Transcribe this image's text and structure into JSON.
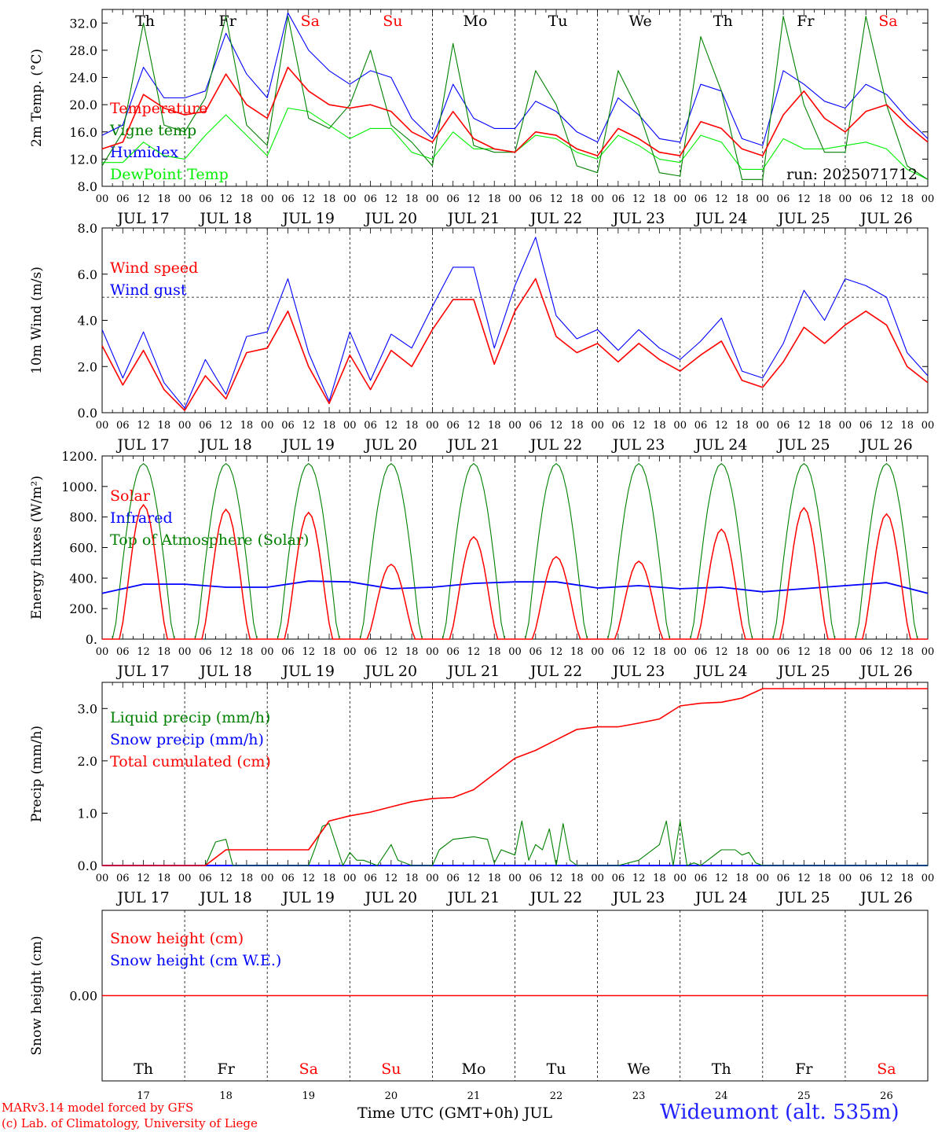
{
  "days": [
    "Th",
    "Fr",
    "Sa",
    "Su",
    "Mo",
    "Tu",
    "We",
    "Th",
    "Fr",
    "Sa"
  ],
  "day_colors": [
    "#000000",
    "#000000",
    "#ff0000",
    "#ff0000",
    "#000000",
    "#000000",
    "#000000",
    "#000000",
    "#000000",
    "#ff0000"
  ],
  "dates": [
    "JUL 17",
    "JUL 18",
    "JUL 19",
    "JUL 20",
    "JUL 21",
    "JUL 22",
    "JUL 23",
    "JUL 24",
    "JUL 25",
    "JUL 26"
  ],
  "day_numbers": [
    "17",
    "18",
    "19",
    "20",
    "21",
    "22",
    "23",
    "24",
    "25",
    "26"
  ],
  "hour_ticks": [
    "00",
    "06",
    "12",
    "18"
  ],
  "hour_end": "00",
  "footer": {
    "credit_line1": "MARv3.14 model forced by GFS",
    "credit_line2": "(c) Lab. of Climatology, University of Liege",
    "xlabel": "Time UTC (GMT+0h) JUL",
    "station": "Wideumont (alt. 535m)"
  },
  "colors": {
    "red": "#ff0000",
    "green": "#008000",
    "blue": "#0000ff",
    "lightgreen": "#00ee00",
    "grey": "#333333"
  },
  "chart_data": [
    {
      "type": "line",
      "ylabel": "2m Temp. (°C)",
      "ylim": [
        8,
        34
      ],
      "yticks": [
        "8.0",
        "12.0",
        "16.0",
        "20.0",
        "24.0",
        "28.0",
        "32.0"
      ],
      "annotation": "run: 2025071712",
      "legend": [
        "Temperature",
        "Vigne temp",
        "Humidex",
        "DewPoint Temp"
      ],
      "x": [
        0,
        6,
        12,
        18,
        24,
        30,
        36,
        42,
        48,
        54,
        60,
        66,
        72,
        78,
        84,
        90,
        96,
        102,
        108,
        114,
        120,
        126,
        132,
        138,
        144,
        150,
        156,
        162,
        168,
        174,
        180,
        186,
        192,
        198,
        204,
        210,
        216,
        222,
        228,
        234,
        240
      ],
      "series": [
        {
          "name": "Temperature",
          "color": "red",
          "values": [
            13.5,
            14.5,
            21.5,
            19.5,
            18.5,
            19.0,
            24.5,
            20.0,
            18.0,
            25.5,
            22.0,
            20.0,
            19.5,
            20.0,
            19.0,
            16.0,
            14.5,
            19.0,
            15.0,
            13.5,
            13.0,
            16.0,
            15.5,
            13.5,
            12.5,
            16.5,
            15.0,
            13.0,
            12.5,
            17.5,
            16.5,
            13.5,
            12.5,
            18.5,
            22.0,
            18.0,
            16.0,
            19.0,
            20.0,
            17.0,
            14.5
          ]
        },
        {
          "name": "Vigne temp",
          "color": "green",
          "values": [
            11.0,
            16.0,
            32.0,
            17.0,
            16.0,
            21.0,
            33.0,
            17.0,
            14.0,
            33.0,
            18.0,
            16.5,
            20.0,
            28.0,
            17.0,
            14.5,
            11.0,
            29.0,
            14.0,
            13.0,
            13.0,
            25.0,
            20.0,
            11.0,
            10.0,
            25.0,
            19.0,
            10.0,
            9.5,
            30.0,
            22.0,
            9.0,
            9.0,
            33.0,
            20.0,
            13.0,
            13.0,
            33.0,
            20.0,
            11.0,
            9.0
          ]
        },
        {
          "name": "Humidex",
          "color": "blue",
          "values": [
            15.5,
            17.0,
            25.5,
            21.0,
            21.0,
            22.0,
            30.5,
            24.5,
            21.0,
            33.5,
            28.0,
            25.0,
            23.0,
            25.0,
            24.0,
            18.0,
            15.0,
            23.0,
            18.0,
            16.5,
            16.5,
            20.5,
            19.0,
            16.0,
            14.5,
            21.0,
            18.5,
            15.0,
            14.5,
            23.0,
            22.0,
            15.0,
            14.0,
            25.0,
            23.0,
            20.5,
            19.5,
            23.0,
            21.5,
            18.0,
            15.0
          ]
        },
        {
          "name": "DewPoint Temp",
          "color": "lightgreen",
          "values": [
            11.5,
            11.5,
            14.5,
            12.5,
            12.0,
            15.5,
            18.5,
            15.5,
            12.5,
            19.5,
            19.0,
            17.0,
            15.0,
            16.5,
            16.5,
            13.0,
            12.0,
            16.0,
            13.5,
            13.5,
            13.0,
            15.5,
            15.0,
            13.0,
            12.0,
            15.5,
            14.0,
            12.0,
            11.5,
            15.5,
            14.5,
            10.5,
            10.5,
            15.0,
            13.5,
            13.5,
            14.0,
            14.5,
            13.5,
            10.5,
            9.0
          ]
        }
      ]
    },
    {
      "type": "line",
      "ylabel": "10m Wind (m/s)",
      "ylim": [
        0,
        8
      ],
      "yticks": [
        "0.0",
        "2.0",
        "4.0",
        "6.0",
        "8.0"
      ],
      "reference_line": 5,
      "legend": [
        "Wind speed",
        "Wind gust"
      ],
      "x": [
        0,
        6,
        12,
        18,
        24,
        30,
        36,
        42,
        48,
        54,
        60,
        66,
        72,
        78,
        84,
        90,
        96,
        102,
        108,
        114,
        120,
        126,
        132,
        138,
        144,
        150,
        156,
        162,
        168,
        174,
        180,
        186,
        192,
        198,
        204,
        210,
        216,
        222,
        228,
        234,
        240
      ],
      "series": [
        {
          "name": "Wind speed",
          "color": "red",
          "values": [
            2.9,
            1.2,
            2.7,
            1.0,
            0.1,
            1.6,
            0.6,
            2.6,
            2.8,
            4.4,
            2.0,
            0.4,
            2.5,
            1.0,
            2.7,
            2.0,
            3.6,
            4.9,
            4.9,
            2.1,
            4.4,
            5.8,
            3.3,
            2.6,
            3.0,
            2.2,
            3.0,
            2.3,
            1.8,
            2.5,
            3.1,
            1.4,
            1.1,
            2.2,
            3.7,
            3.0,
            3.8,
            4.4,
            3.8,
            2.0,
            1.3
          ]
        },
        {
          "name": "Wind gust",
          "color": "blue",
          "values": [
            3.6,
            1.5,
            3.5,
            1.3,
            0.2,
            2.3,
            0.8,
            3.3,
            3.5,
            5.8,
            2.6,
            0.5,
            3.5,
            1.4,
            3.4,
            2.8,
            4.6,
            6.3,
            6.3,
            2.8,
            5.5,
            7.6,
            4.2,
            3.2,
            3.6,
            2.7,
            3.6,
            2.8,
            2.3,
            3.1,
            4.1,
            1.8,
            1.5,
            3.0,
            5.3,
            4.0,
            5.8,
            5.5,
            5.0,
            2.6,
            1.6
          ]
        }
      ]
    },
    {
      "type": "line",
      "ylabel": "Energy fluxes (W/m²)",
      "ylim": [
        0,
        1200
      ],
      "yticks": [
        "0.",
        "200.",
        "400.",
        "600.",
        "800.",
        "1000.",
        "1200."
      ],
      "legend": [
        "Solar",
        "Infrared",
        "Top of Atmosphere (Solar)"
      ],
      "daily_solar_peak": [
        880,
        850,
        830,
        490,
        670,
        540,
        510,
        720,
        860,
        820
      ],
      "toa_peak": 1150,
      "infrared_x": [
        0,
        12,
        24,
        36,
        48,
        60,
        72,
        84,
        96,
        108,
        120,
        132,
        144,
        156,
        168,
        180,
        192,
        204,
        216,
        228,
        240
      ],
      "infrared": [
        300,
        360,
        360,
        340,
        340,
        380,
        375,
        330,
        340,
        365,
        375,
        375,
        335,
        350,
        330,
        340,
        310,
        330,
        350,
        370,
        300
      ],
      "series": [
        {
          "name": "Solar",
          "color": "red"
        },
        {
          "name": "Infrared",
          "color": "blue"
        },
        {
          "name": "Top of Atmosphere (Solar)",
          "color": "green"
        }
      ]
    },
    {
      "type": "line",
      "ylabel": "Precip (mm/h)",
      "ylim": [
        0,
        3.5
      ],
      "yticks": [
        "0.0",
        "1.0",
        "2.0",
        "3.0"
      ],
      "legend": [
        "Liquid precip (mm/h)",
        "Snow precip (mm/h)",
        "Total cumulated (cm)"
      ],
      "cum_x": [
        0,
        30,
        36,
        42,
        48,
        60,
        66,
        72,
        78,
        84,
        90,
        96,
        102,
        108,
        114,
        120,
        126,
        132,
        138,
        144,
        150,
        156,
        162,
        168,
        174,
        180,
        186,
        192,
        240
      ],
      "cum_values": [
        0,
        0,
        0.3,
        0.3,
        0.3,
        0.3,
        0.85,
        0.95,
        1.02,
        1.12,
        1.22,
        1.28,
        1.3,
        1.45,
        1.75,
        2.05,
        2.2,
        2.4,
        2.6,
        2.65,
        2.65,
        2.72,
        2.8,
        3.05,
        3.1,
        3.12,
        3.2,
        3.38,
        3.38
      ],
      "liquid_x": [
        0,
        30,
        33,
        36,
        38,
        40,
        60,
        62,
        64,
        66,
        68,
        70,
        72,
        74,
        76,
        80,
        84,
        86,
        90,
        96,
        98,
        102,
        108,
        112,
        114,
        116,
        120,
        122,
        124,
        126,
        128,
        130,
        132,
        134,
        136,
        138,
        140,
        144,
        150,
        156,
        158,
        162,
        164,
        166,
        168,
        170,
        172,
        174,
        176,
        180,
        184,
        186,
        188,
        190,
        192,
        240
      ],
      "liquid_values": [
        0,
        0,
        0.45,
        0.5,
        0,
        0,
        0,
        0.35,
        0.75,
        0.8,
        0.4,
        0,
        0.25,
        0.1,
        0.1,
        0,
        0.4,
        0.1,
        0,
        0,
        0.3,
        0.5,
        0.55,
        0.5,
        0.05,
        0.3,
        0.2,
        0.85,
        0.1,
        0.4,
        0.3,
        0.7,
        0,
        0.8,
        0.1,
        0,
        0,
        0,
        0,
        0.1,
        0.2,
        0.4,
        0.85,
        0,
        0.85,
        0,
        0.05,
        0,
        0.1,
        0.3,
        0.3,
        0.2,
        0.25,
        0.05,
        0,
        0
      ],
      "series": [
        {
          "name": "Liquid precip (mm/h)",
          "color": "green"
        },
        {
          "name": "Snow precip (mm/h)",
          "color": "blue"
        },
        {
          "name": "Total cumulated (cm)",
          "color": "red"
        }
      ]
    },
    {
      "type": "line",
      "ylabel": "Snow height (cm)",
      "ylim": [
        -1,
        1
      ],
      "yticks": [
        "0.00"
      ],
      "legend": [
        "Snow height (cm)",
        "Snow height (cm W.E.)"
      ],
      "series": [
        {
          "name": "Snow height (cm)",
          "color": "red",
          "values": [
            0,
            0
          ]
        },
        {
          "name": "Snow height (cm W.E.)",
          "color": "blue",
          "values": [
            0,
            0
          ]
        }
      ]
    }
  ]
}
